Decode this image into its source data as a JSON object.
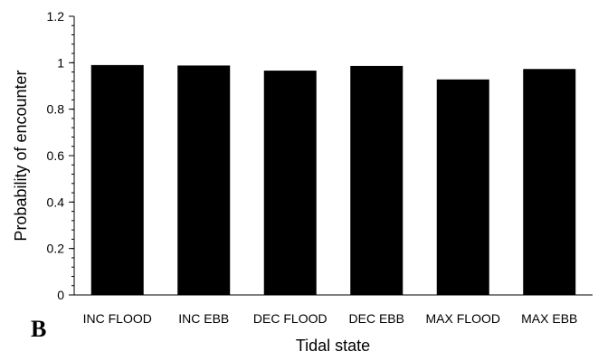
{
  "chart_data": {
    "type": "bar",
    "title": "",
    "xlabel": "Tidal state",
    "ylabel": "Probability of encounter",
    "panel_label": "B",
    "categories": [
      "INC FLOOD",
      "INC EBB",
      "DEC FLOOD",
      "DEC EBB",
      "MAX FLOOD",
      "MAX EBB"
    ],
    "values": [
      0.99,
      0.988,
      0.966,
      0.986,
      0.928,
      0.973
    ],
    "ylim": [
      0,
      1.2
    ],
    "yticks": [
      "0",
      "0.2",
      "0.4",
      "0.6",
      "0.8",
      "1",
      "1.2"
    ],
    "grid": false,
    "bar_color": "#000000"
  }
}
